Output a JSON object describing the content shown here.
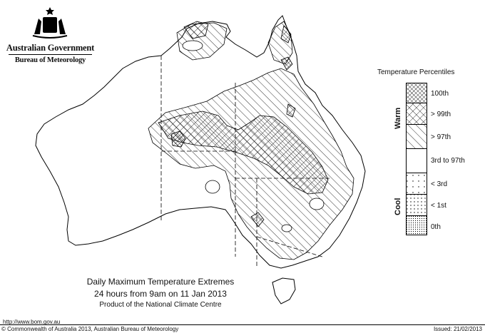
{
  "header": {
    "government": "Australian Government",
    "bureau": "Bureau of Meteorology"
  },
  "legend": {
    "title": "Temperature Percentiles",
    "warm_label": "Warm",
    "cool_label": "Cool",
    "items": [
      {
        "label": "100th",
        "pattern": "dense-crosshatch"
      },
      {
        "label": "> 99th",
        "pattern": "crosshatch"
      },
      {
        "label": "> 97th",
        "pattern": "diagonal-hatch"
      },
      {
        "label": "3rd to 97th",
        "pattern": "blank"
      },
      {
        "label": "< 3rd",
        "pattern": "sparse-dots"
      },
      {
        "label": "< 1st",
        "pattern": "dots"
      },
      {
        "label": "0th",
        "pattern": "dense-dots"
      }
    ]
  },
  "caption": {
    "title": "Daily Maximum Temperature Extremes",
    "subtitle": "24 hours from 9am on 11 Jan 2013",
    "product": "Product of the National Climate Centre"
  },
  "footer": {
    "url": "http://www.bom.gov.au",
    "copyright": "© Commonwealth of Australia 2013, Australian Bureau of Meteorology",
    "issued": "Issued: 21/02/2013"
  },
  "colors": {
    "ink": "#000000",
    "background": "#ffffff"
  }
}
